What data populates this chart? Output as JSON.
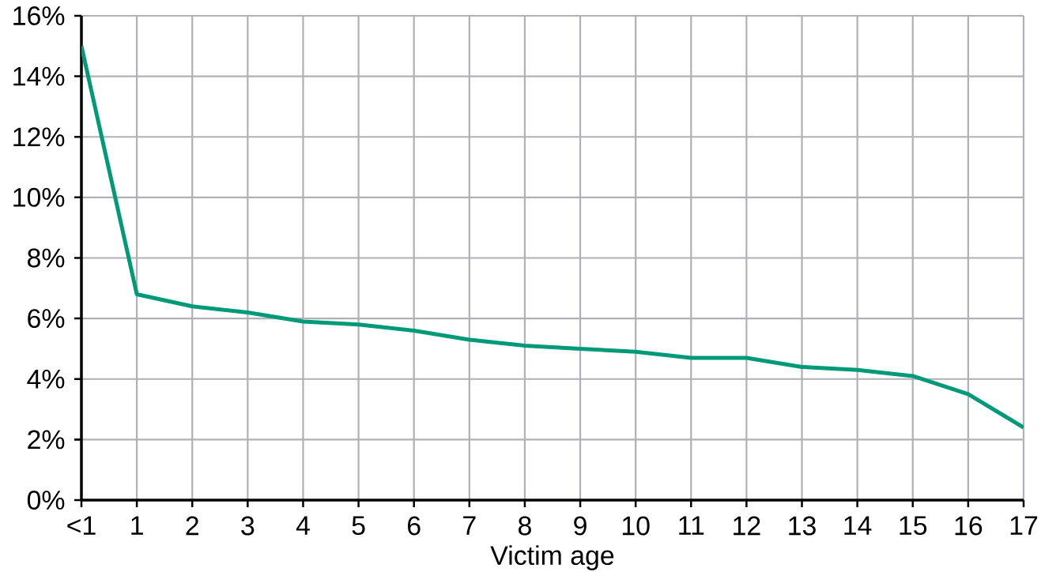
{
  "chart_data": {
    "type": "line",
    "xlabel": "Victim age",
    "categories": [
      "<1",
      "1",
      "2",
      "3",
      "4",
      "5",
      "6",
      "7",
      "8",
      "9",
      "10",
      "11",
      "12",
      "13",
      "14",
      "15",
      "16",
      "17"
    ],
    "values": [
      15.0,
      6.8,
      6.4,
      6.2,
      5.9,
      5.8,
      5.6,
      5.3,
      5.1,
      5.0,
      4.9,
      4.7,
      4.7,
      4.4,
      4.3,
      4.1,
      3.5,
      2.4
    ],
    "color": "#009a78",
    "ylim": [
      0,
      16
    ],
    "yticks": [
      {
        "value": 0,
        "label": "0%"
      },
      {
        "value": 2,
        "label": "2%"
      },
      {
        "value": 4,
        "label": "4%"
      },
      {
        "value": 6,
        "label": "6%"
      },
      {
        "value": 8,
        "label": "8%"
      },
      {
        "value": 10,
        "label": "10%"
      },
      {
        "value": 12,
        "label": "12%"
      },
      {
        "value": 14,
        "label": "14%"
      },
      {
        "value": 16,
        "label": "16%"
      }
    ],
    "grid": true,
    "marker": "none",
    "line_style": "solid"
  }
}
